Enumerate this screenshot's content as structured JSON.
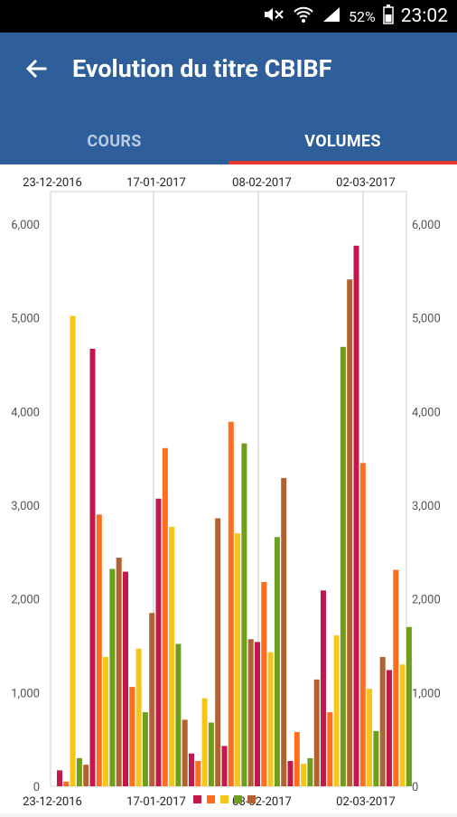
{
  "statusbar": {
    "battery": "52%",
    "time": "23:02",
    "icons": [
      "mute-icon",
      "wifi-icon",
      "signal-icon",
      "battery-icon"
    ]
  },
  "appbar": {
    "title": "Evolution du titre CBIBF",
    "back_icon": "back-arrow-icon"
  },
  "tabs": [
    {
      "label": "COURS",
      "active": false
    },
    {
      "label": "VOLUMES",
      "active": true
    }
  ],
  "colors": {
    "appbar": "#2f5f9a",
    "tab_indicator": "#e23a2f",
    "series": [
      "#c2184b",
      "#ff6d1f",
      "#f5c518",
      "#6f9d1e",
      "#b26230"
    ]
  },
  "chart_data": {
    "type": "bar",
    "top_date_labels": [
      "23-12-2016",
      "17-01-2017",
      "08-02-2017",
      "02-03-2017"
    ],
    "bottom_date_labels": [
      "23-12-2016",
      "17-01-2017",
      "08-02-2017",
      "02-03-2017"
    ],
    "yticks": [
      "0",
      "1,000",
      "2,000",
      "3,000",
      "4,000",
      "5,000",
      "6,000"
    ],
    "ylim": [
      0,
      6000
    ],
    "grid": true,
    "values": [
      170,
      50,
      5020,
      300,
      230,
      4670,
      2900,
      1380,
      2320,
      2440,
      2290,
      1060,
      1470,
      790,
      1850,
      3070,
      3610,
      2770,
      1520,
      710,
      350,
      270,
      940,
      680,
      2860,
      430,
      3890,
      2700,
      3660,
      1570,
      1540,
      2180,
      1430,
      2660,
      3290,
      270,
      580,
      240,
      300,
      1140,
      2090,
      790,
      1610,
      4690,
      5410,
      5770,
      3450,
      1040,
      590,
      1380,
      1240,
      2310,
      1300,
      1700
    ]
  }
}
